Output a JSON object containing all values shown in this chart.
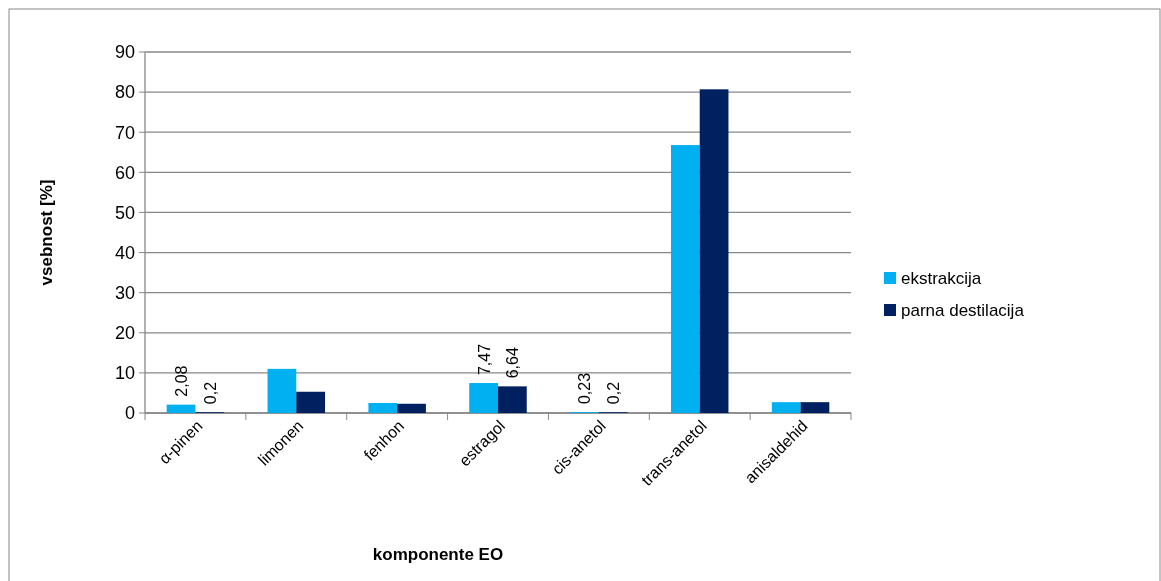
{
  "chart_data": {
    "type": "bar",
    "xlabel": "komponente EO",
    "ylabel": "vsebnost [%]",
    "categories": [
      "α-pinen",
      "limonen",
      "fenhon",
      "estragol",
      "cis-anetol",
      "trans-anetol",
      "anisaldehid"
    ],
    "series": [
      {
        "name": "ekstrakcija",
        "color": "#00b0f0",
        "values": [
          2.08,
          11,
          2.5,
          7.47,
          0.23,
          66.8,
          2.7
        ],
        "value_labels": [
          "2,08",
          null,
          null,
          "7,47",
          "0,23",
          null,
          null
        ]
      },
      {
        "name": "parna destilacija",
        "color": "#002060",
        "values": [
          0.2,
          5.3,
          2.3,
          6.64,
          0.2,
          80.7,
          2.7
        ],
        "value_labels": [
          "0,2",
          null,
          null,
          "6,64",
          "0,2",
          null,
          null
        ]
      }
    ],
    "ylim": [
      0,
      90
    ],
    "yticks": [
      0,
      10,
      20,
      30,
      40,
      50,
      60,
      70,
      80,
      90
    ],
    "grid": "y",
    "legend": "right"
  }
}
